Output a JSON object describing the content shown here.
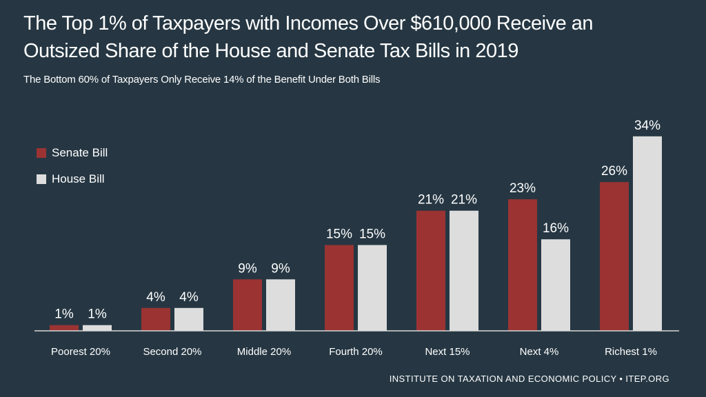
{
  "title": "The Top 1% of Taxpayers with Incomes Over $610,000 Receive an Outsized Share of the House and Senate Tax Bills in 2019",
  "subtitle": "The Bottom 60% of Taxpayers Only Receive 14% of the Benefit Under Both Bills",
  "source": "INSTITUTE ON TAXATION AND ECONOMIC POLICY • ITEP.ORG",
  "colors": {
    "background": "#263743",
    "senate": "#9B3333",
    "house": "#DDDDDD",
    "text": "#FFFFFF",
    "axis": "#D8D8D8"
  },
  "chart_data": {
    "type": "bar",
    "title": "The Top 1% of Taxpayers with Incomes Over $610,000 Receive an Outsized Share of the House and Senate Tax Bills in 2019",
    "subtitle": "The Bottom 60% of Taxpayers Only Receive 14% of the Benefit Under Both Bills",
    "xlabel": "",
    "ylabel": "",
    "categories": [
      "Poorest 20%",
      "Second 20%",
      "Middle 20%",
      "Fourth 20%",
      "Next 15%",
      "Next 4%",
      "Richest 1%"
    ],
    "series": [
      {
        "name": "Senate Bill",
        "color": "#9B3333",
        "values": [
          1,
          4,
          9,
          15,
          21,
          23,
          26
        ],
        "labels": [
          "1%",
          "4%",
          "9%",
          "15%",
          "21%",
          "23%",
          "26%"
        ]
      },
      {
        "name": "House Bill",
        "color": "#DDDDDD",
        "values": [
          1,
          4,
          9,
          15,
          21,
          16,
          34
        ],
        "labels": [
          "1%",
          "4%",
          "9%",
          "15%",
          "21%",
          "16%",
          "34%"
        ]
      }
    ],
    "ylim": [
      0,
      34
    ],
    "grid": false,
    "legend_position": "top-left"
  }
}
